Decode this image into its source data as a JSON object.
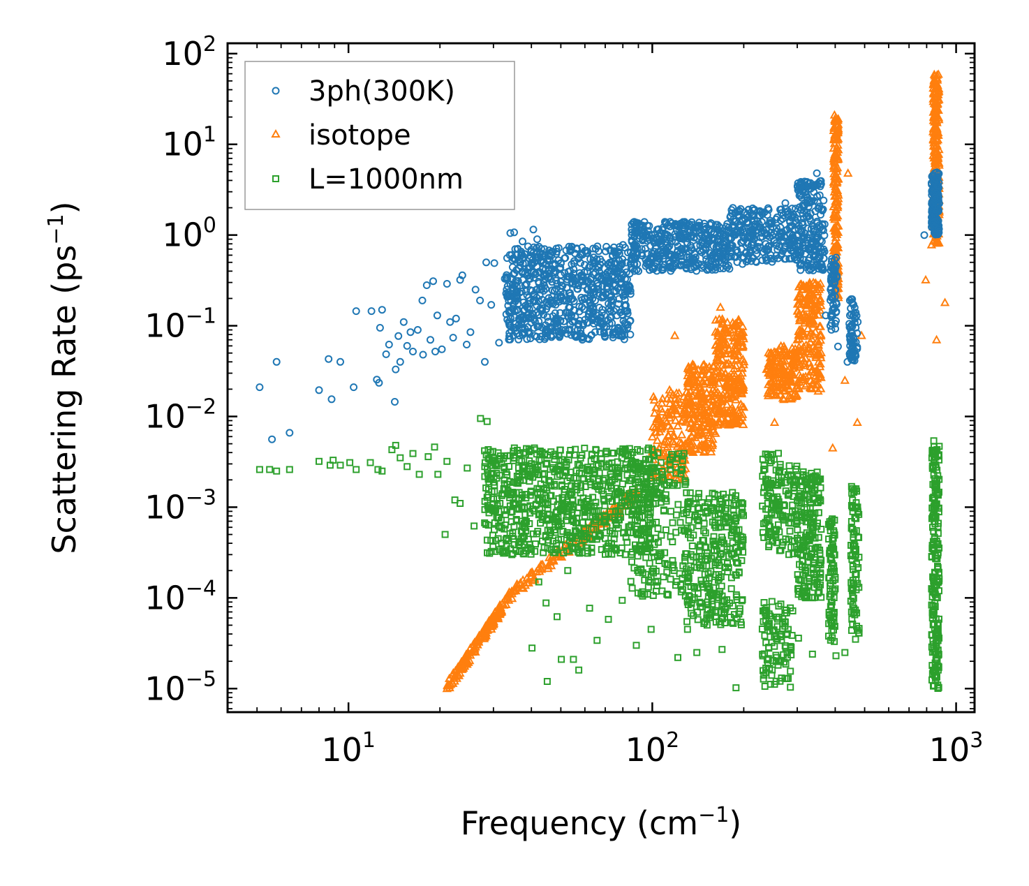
{
  "chart_data": {
    "type": "scatter",
    "xscale": "log",
    "yscale": "log",
    "xlim": [
      4.0,
      1150
    ],
    "ylim": [
      5.5e-06,
      130
    ],
    "xlabel": {
      "text": "Frequency (cm",
      "sup": "−1",
      "tail": ")"
    },
    "ylabel": {
      "text": "Scattering Rate (ps",
      "sup": "−1",
      "tail": ")"
    },
    "xticks": [
      {
        "value": 10,
        "base": "10",
        "exp": "1"
      },
      {
        "value": 100,
        "base": "10",
        "exp": "2"
      },
      {
        "value": 1000,
        "base": "10",
        "exp": "3"
      }
    ],
    "yticks": [
      {
        "value": 100,
        "base": "10",
        "exp": "2"
      },
      {
        "value": 10,
        "base": "10",
        "exp": "1"
      },
      {
        "value": 1,
        "base": "10",
        "exp": "0"
      },
      {
        "value": 0.1,
        "base": "10",
        "exp": "−1"
      },
      {
        "value": 0.01,
        "base": "10",
        "exp": "−2"
      },
      {
        "value": 0.001,
        "base": "10",
        "exp": "−3"
      },
      {
        "value": 0.0001,
        "base": "10",
        "exp": "−4"
      },
      {
        "value": 1e-05,
        "base": "10",
        "exp": "−5"
      }
    ],
    "legend": {
      "position": "upper-left"
    },
    "series": [
      {
        "name": "3ph(300K)",
        "marker": "circle",
        "color": "#1f77b4",
        "points": [
          [
            5.1,
            0.021
          ],
          [
            5.6,
            0.0056
          ],
          [
            5.8,
            0.04
          ],
          [
            6.4,
            0.0066
          ],
          [
            8.0,
            0.0195
          ],
          [
            8.6,
            0.043
          ],
          [
            8.8,
            0.0155
          ],
          [
            9.4,
            0.04
          ],
          [
            10.4,
            0.021
          ],
          [
            10.6,
            0.145
          ],
          [
            11.9,
            0.145
          ],
          [
            12.4,
            0.0255
          ],
          [
            12.6,
            0.0235
          ],
          [
            12.7,
            0.095
          ],
          [
            12.9,
            0.15
          ],
          [
            13.3,
            0.0485
          ],
          [
            13.6,
            0.062
          ],
          [
            14.2,
            0.0145
          ],
          [
            14.3,
            0.033
          ],
          [
            14.6,
            0.077
          ],
          [
            14.8,
            0.04
          ],
          [
            15.2,
            0.11
          ],
          [
            15.6,
            0.06
          ],
          [
            16.0,
            0.085
          ],
          [
            16.3,
            0.052
          ],
          [
            16.9,
            0.09
          ],
          [
            17.5,
            0.19
          ],
          [
            17.6,
            0.048
          ],
          [
            18.1,
            0.28
          ],
          [
            18.6,
            0.07
          ],
          [
            19.0,
            0.31
          ],
          [
            19.3,
            0.052
          ],
          [
            19.6,
            0.13
          ],
          [
            20.3,
            0.055
          ],
          [
            21.1,
            0.29
          ],
          [
            21.6,
            0.11
          ],
          [
            22.1,
            0.074
          ],
          [
            22.6,
            0.12
          ],
          [
            23.3,
            0.32
          ],
          [
            23.7,
            0.36
          ],
          [
            24.5,
            0.062
          ],
          [
            25.2,
            0.085
          ],
          [
            26.2,
            0.25
          ],
          [
            27.1,
            0.19
          ],
          [
            28.1,
            0.04
          ],
          [
            28.4,
            0.5
          ],
          [
            29.5,
            0.17
          ],
          [
            30.2,
            0.49
          ],
          [
            31.3,
            0.065
          ],
          [
            32.7,
            0.33
          ],
          [
            34.1,
            1.05
          ],
          [
            35.1,
            1.07
          ],
          [
            35.8,
            0.6
          ],
          [
            36.7,
            0.46
          ],
          [
            37.4,
            0.85
          ],
          [
            38.1,
            0.28
          ],
          [
            39.0,
            0.75
          ],
          [
            40.6,
            1.15
          ],
          [
            41.8,
            0.9
          ],
          [
            42.7,
            0.25
          ],
          [
            44.2,
            0.7
          ],
          [
            45.7,
            0.4
          ],
          [
            46.8,
            0.19
          ],
          [
            48.3,
            0.62
          ],
          [
            49.2,
            0.086
          ],
          [
            49.5,
            0.075
          ],
          [
            51.7,
            0.56
          ],
          [
            53.6,
            0.23
          ],
          [
            55.1,
            0.42
          ],
          [
            58.3,
            0.35
          ],
          [
            61.1,
            0.25
          ],
          [
            64.5,
            0.48
          ],
          [
            67.4,
            0.54
          ],
          [
            71.7,
            0.31
          ],
          [
            75.6,
            0.42
          ],
          [
            80.1,
            0.78
          ],
          [
            85.5,
            1.15
          ],
          [
            92.4,
            0.63
          ],
          [
            101.5,
            0.82
          ],
          [
            111.0,
            1.38
          ],
          [
            122.4,
            1.01
          ],
          [
            136.1,
            0.55
          ],
          [
            149.2,
            1.24
          ],
          [
            164.1,
            0.85
          ],
          [
            181.1,
            1.62
          ],
          [
            198.1,
            0.48
          ],
          [
            222.5,
            1.14
          ],
          [
            245.3,
            0.55
          ],
          [
            274.1,
            2.25
          ],
          [
            302.0,
            0.75
          ],
          [
            330.1,
            1.52
          ],
          [
            348.0,
            4.8
          ],
          [
            372.2,
            0.13
          ],
          [
            389.5,
            0.51
          ],
          [
            408.6,
            0.059
          ],
          [
            438.7,
            0.04
          ],
          [
            467.3,
            0.14
          ],
          [
            785.7,
            1.0
          ],
          [
            844.5,
            4.2
          ],
          [
            868.2,
            2.6
          ]
        ],
        "clusters": [
          {
            "x": [
              33,
              85
            ],
            "y": [
              0.07,
              0.75
            ],
            "n": 700
          },
          {
            "x": [
              85,
              180
            ],
            "y": [
              0.4,
              1.4
            ],
            "n": 400
          },
          {
            "x": [
              180,
              300
            ],
            "y": [
              0.5,
              2.0
            ],
            "n": 250
          },
          {
            "x": [
              300,
              370
            ],
            "y": [
              0.4,
              4.0
            ],
            "n": 200
          },
          {
            "x": [
              385,
              405
            ],
            "y": [
              0.08,
              0.6
            ],
            "n": 60
          },
          {
            "x": [
              445,
              475
            ],
            "y": [
              0.04,
              0.2
            ],
            "n": 60
          },
          {
            "x": [
              830,
              880
            ],
            "y": [
              1.0,
              5.0
            ],
            "n": 160
          }
        ]
      },
      {
        "name": "isotope",
        "marker": "triangle",
        "color": "#ff7f0e",
        "points": [
          [
            118.6,
            0.078
          ],
          [
            139.9,
            0.0195
          ],
          [
            161.4,
            0.0065
          ],
          [
            167.6,
            0.16
          ],
          [
            170.0,
            0.07
          ],
          [
            189.3,
            0.055
          ],
          [
            200.3,
            0.04
          ],
          [
            237.6,
            0.033
          ],
          [
            252.6,
            0.0086
          ],
          [
            300.4,
            0.037
          ],
          [
            332.1,
            0.2
          ],
          [
            351.5,
            0.019
          ],
          [
            392.4,
            0.0045
          ],
          [
            402.8,
            0.6
          ],
          [
            430.6,
            0.025
          ],
          [
            440.6,
            4.8
          ],
          [
            458.2,
            0.055
          ],
          [
            473.1,
            0.0086
          ],
          [
            488.3,
            0.078
          ],
          [
            794.0,
            0.32
          ],
          [
            830.3,
            0.78
          ],
          [
            862.2,
            0.07
          ],
          [
            918.8,
            0.18
          ]
        ],
        "clusters": [
          {
            "x": [
              21,
              35
            ],
            "y": [
              1e-05,
              0.00012
            ],
            "n": 160,
            "trend": true
          },
          {
            "x": [
              35,
              90
            ],
            "y": [
              0.00012,
              0.0015
            ],
            "n": 120,
            "trend": true
          },
          {
            "x": [
              100,
              130
            ],
            "y": [
              0.002,
              0.02
            ],
            "n": 150
          },
          {
            "x": [
              130,
              160
            ],
            "y": [
              0.004,
              0.04
            ],
            "n": 200
          },
          {
            "x": [
              160,
              200
            ],
            "y": [
              0.008,
              0.12
            ],
            "n": 250
          },
          {
            "x": [
              240,
              300
            ],
            "y": [
              0.015,
              0.06
            ],
            "n": 150
          },
          {
            "x": [
              300,
              360
            ],
            "y": [
              0.02,
              0.3
            ],
            "n": 200
          },
          {
            "x": [
              395,
              410
            ],
            "y": [
              0.2,
              22
            ],
            "n": 160
          },
          {
            "x": [
              840,
              880
            ],
            "y": [
              0.8,
              60
            ],
            "n": 240
          }
        ]
      },
      {
        "name": "L=1000nm",
        "marker": "square",
        "color": "#2ca02c",
        "points": [
          [
            5.1,
            0.0026
          ],
          [
            5.5,
            0.0026
          ],
          [
            5.8,
            0.0025
          ],
          [
            6.4,
            0.0026
          ],
          [
            8.0,
            0.0032
          ],
          [
            8.7,
            0.0029
          ],
          [
            8.9,
            0.0033
          ],
          [
            9.4,
            0.0029
          ],
          [
            10.1,
            0.0031
          ],
          [
            10.6,
            0.0026
          ],
          [
            11.8,
            0.0031
          ],
          [
            12.5,
            0.0026
          ],
          [
            12.9,
            0.0025
          ],
          [
            13.9,
            0.0043
          ],
          [
            14.3,
            0.0048
          ],
          [
            14.8,
            0.0035
          ],
          [
            15.6,
            0.0028
          ],
          [
            16.3,
            0.0039
          ],
          [
            17.1,
            0.0023
          ],
          [
            18.3,
            0.0036
          ],
          [
            19.2,
            0.0046
          ],
          [
            19.7,
            0.0023
          ],
          [
            20.8,
            0.0005
          ],
          [
            21.1,
            0.0032
          ],
          [
            22.4,
            0.0012
          ],
          [
            23.3,
            0.0011
          ],
          [
            24.6,
            0.0027
          ],
          [
            25.9,
            0.00062
          ],
          [
            27.2,
            0.0095
          ],
          [
            28.6,
            0.0088
          ],
          [
            31.1,
            0.00045
          ],
          [
            34.5,
            0.0003
          ],
          [
            37.6,
            0.00031
          ],
          [
            40.2,
            2.8e-05
          ],
          [
            42.3,
            0.00015
          ],
          [
            44.7,
            8.8e-05
          ],
          [
            45.1,
            1.2e-05
          ],
          [
            48.6,
            6.2e-05
          ],
          [
            50.2,
            2.1e-05
          ],
          [
            52.7,
            0.0002
          ],
          [
            55.0,
            2.1e-05
          ],
          [
            57.3,
            1.6e-05
          ],
          [
            62.2,
            7.7e-05
          ],
          [
            65.8,
            3.4e-05
          ],
          [
            71.7,
            5.8e-05
          ],
          [
            79.6,
            9.4e-05
          ],
          [
            88.6,
            3e-05
          ],
          [
            99.1,
            4.5e-05
          ],
          [
            111.7,
            0.00011
          ],
          [
            121.4,
            2.2e-05
          ],
          [
            130.6,
            4.5e-05
          ],
          [
            140.2,
            2.5e-05
          ],
          [
            156.5,
            0.00011
          ],
          [
            169.7,
            2.7e-05
          ],
          [
            188.6,
            1.02e-05
          ],
          [
            231.4,
            1.58e-05
          ],
          [
            256.5,
            2.2e-05
          ],
          [
            268.7,
            5.2e-05
          ],
          [
            302.8,
            3.6e-05
          ],
          [
            336.7,
            2.4e-05
          ],
          [
            380.8,
            5.2e-05
          ],
          [
            402.3,
            2.3e-05
          ],
          [
            430.6,
            2.5e-05
          ],
          [
            466.6,
            3.5e-05
          ],
          [
            833.9,
            1.8e-05
          ],
          [
            844.1,
            0.0054
          ]
        ],
        "clusters": [
          {
            "x": [
              28,
              100
            ],
            "y": [
              0.0003,
              0.0045
            ],
            "n": 800
          },
          {
            "x": [
              85,
              130
            ],
            "y": [
              0.0001,
              0.004
            ],
            "n": 200
          },
          {
            "x": [
              130,
              200
            ],
            "y": [
              5e-05,
              0.0015
            ],
            "n": 300
          },
          {
            "x": [
              230,
              290
            ],
            "y": [
              1e-05,
              0.0001
            ],
            "n": 100
          },
          {
            "x": [
              230,
              300
            ],
            "y": [
              0.0003,
              0.004
            ],
            "n": 150
          },
          {
            "x": [
              300,
              360
            ],
            "y": [
              0.0001,
              0.0025
            ],
            "n": 200
          },
          {
            "x": [
              380,
              400
            ],
            "y": [
              3e-05,
              0.0008
            ],
            "n": 80
          },
          {
            "x": [
              450,
              480
            ],
            "y": [
              4e-05,
              0.002
            ],
            "n": 80
          },
          {
            "x": [
              830,
              880
            ],
            "y": [
              1e-05,
              0.005
            ],
            "n": 200
          }
        ]
      }
    ]
  }
}
